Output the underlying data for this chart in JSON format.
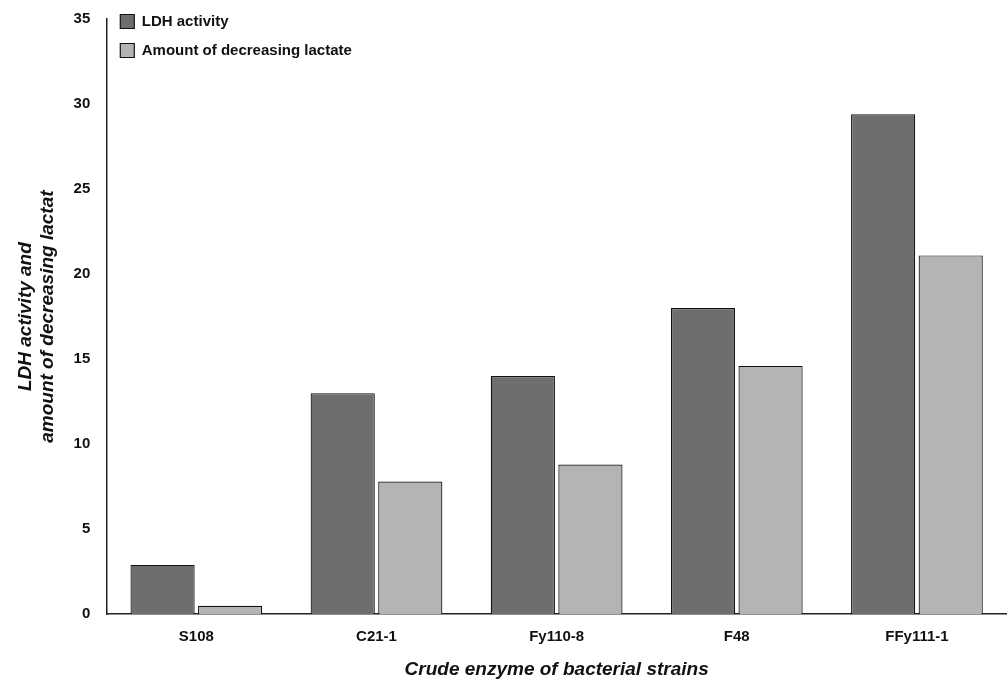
{
  "chart_data": {
    "type": "bar",
    "xlabel": "Crude enzyme of bacterial strains",
    "ylabel": "LDH activity and\namount of decreasing lactat",
    "categories": [
      "S108",
      "C21-1",
      "Fy110-8",
      "F48",
      "FFy111-1"
    ],
    "series": [
      {
        "name": "LDH activity",
        "color": "#6e6e6e",
        "values": [
          2.9,
          13,
          14,
          18,
          29.4
        ]
      },
      {
        "name": "Amount of decreasing lactate",
        "color": "#b4b4b4",
        "values": [
          0.5,
          7.8,
          8.8,
          14.6,
          21.1
        ]
      }
    ],
    "ylim": [
      0,
      35
    ],
    "yticks": [
      0,
      5,
      10,
      15,
      20,
      25,
      30,
      35
    ],
    "grid": false,
    "legend": "top left"
  }
}
